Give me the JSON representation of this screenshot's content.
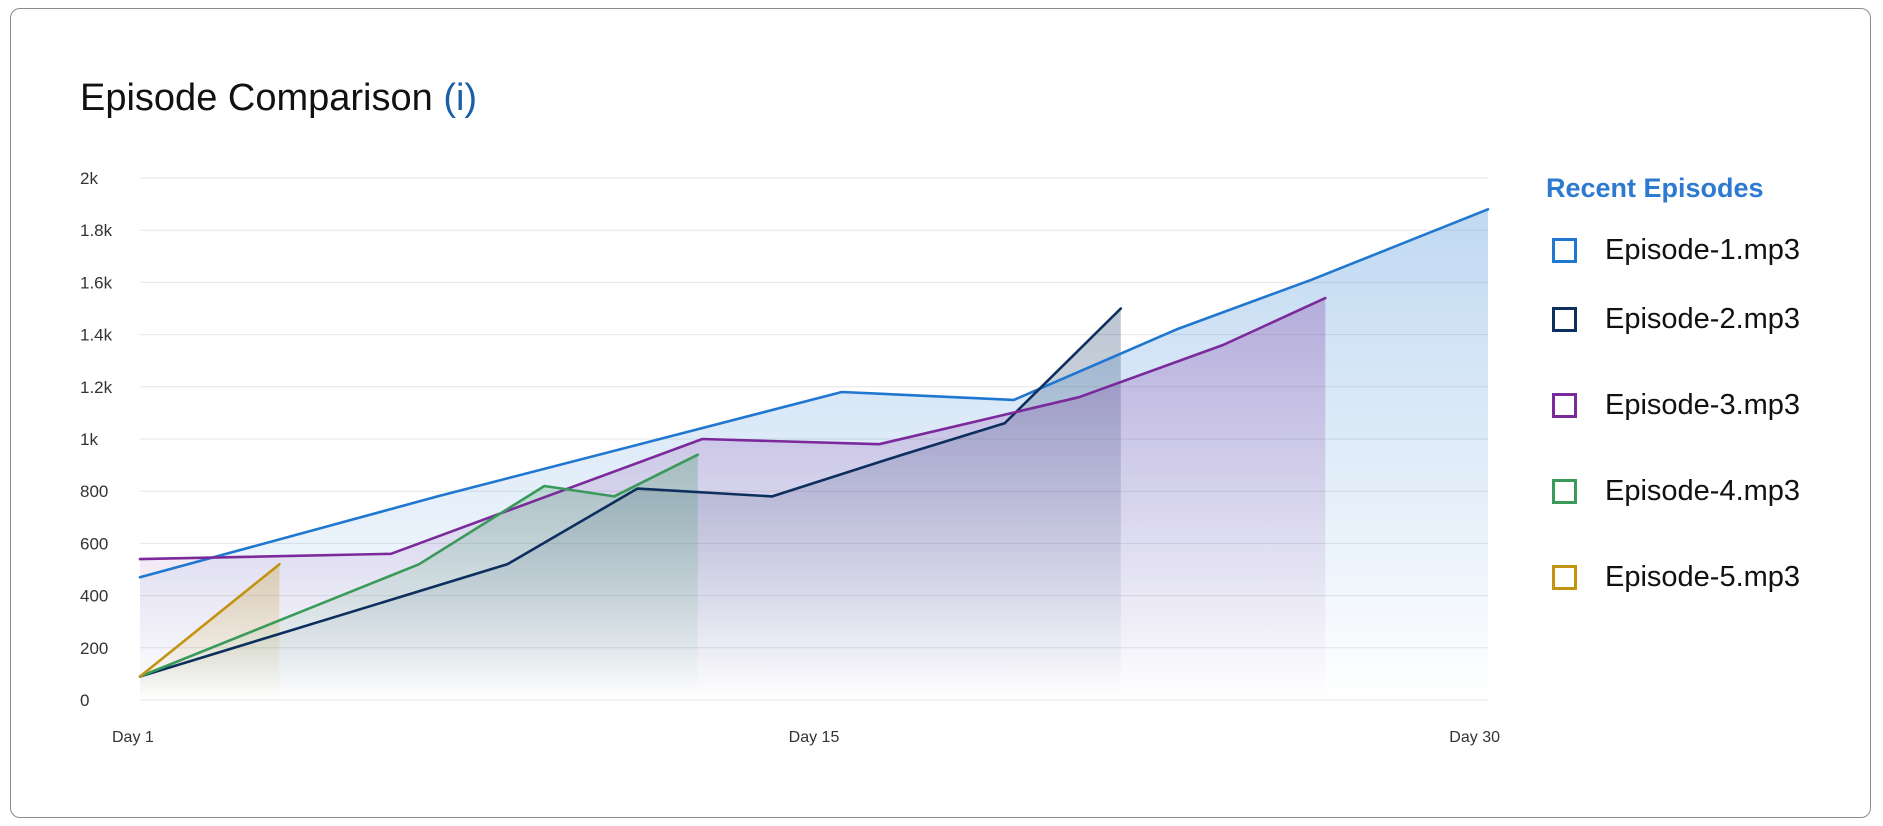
{
  "title": "Episode Comparison",
  "info_marker": "(i)",
  "legend": {
    "title": "Recent Episodes"
  },
  "chart_data": {
    "type": "area",
    "title": "Episode Comparison",
    "xlabel": "",
    "ylabel": "",
    "x_ticks": [
      "Day 1",
      "Day 15",
      "Day 30"
    ],
    "x_range": [
      1,
      30
    ],
    "y_ticks": [
      "0",
      "200",
      "400",
      "600",
      "800",
      "1k",
      "1.2k",
      "1.4k",
      "1.6k",
      "1.8k",
      "2k"
    ],
    "ylim": [
      0,
      2000
    ],
    "grid": true,
    "legend_position": "right",
    "series": [
      {
        "name": "Episode-1.mp3",
        "color": "#1f77d0",
        "points": [
          [
            1,
            470
          ],
          [
            7.4,
            780
          ],
          [
            16.1,
            1180
          ],
          [
            19.8,
            1150
          ],
          [
            23.3,
            1420
          ],
          [
            26.2,
            1610
          ],
          [
            30,
            1880
          ]
        ]
      },
      {
        "name": "Episode-2.mp3",
        "color": "#0d2f5e",
        "points": [
          [
            1,
            90
          ],
          [
            8.9,
            520
          ],
          [
            11.7,
            810
          ],
          [
            14.6,
            780
          ],
          [
            17.4,
            940
          ],
          [
            19.6,
            1060
          ],
          [
            22.1,
            1500
          ]
        ]
      },
      {
        "name": "Episode-3.mp3",
        "color": "#7b2a9b",
        "points": [
          [
            1,
            540
          ],
          [
            6.4,
            560
          ],
          [
            13.1,
            1000
          ],
          [
            16.9,
            980
          ],
          [
            21.2,
            1160
          ],
          [
            24.3,
            1360
          ],
          [
            26.5,
            1540
          ]
        ]
      },
      {
        "name": "Episode-4.mp3",
        "color": "#3a9a5a",
        "points": [
          [
            1,
            90
          ],
          [
            7.0,
            520
          ],
          [
            9.7,
            820
          ],
          [
            11.2,
            780
          ],
          [
            13.0,
            940
          ]
        ]
      },
      {
        "name": "Episode-5.mp3",
        "color": "#c39412",
        "points": [
          [
            1,
            90
          ],
          [
            4.0,
            520
          ]
        ]
      }
    ]
  }
}
